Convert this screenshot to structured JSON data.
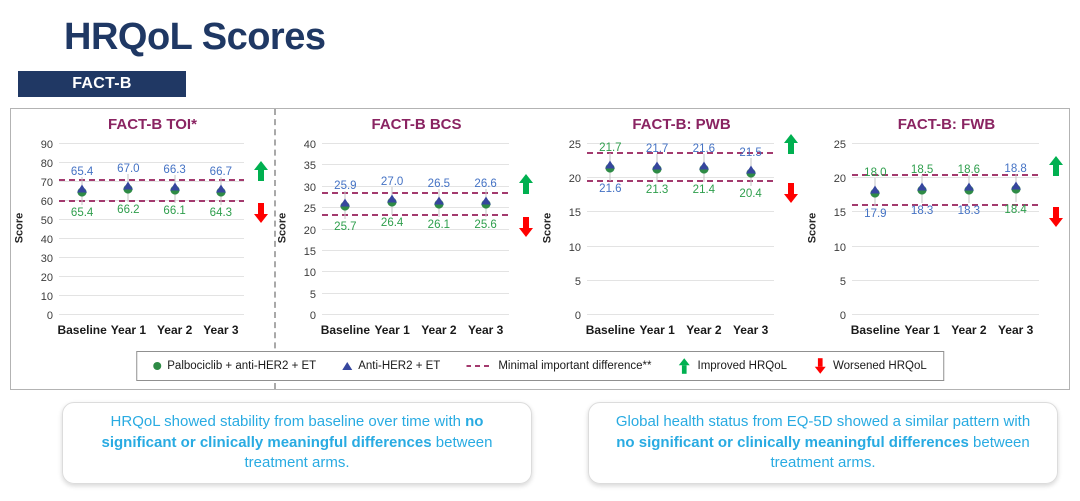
{
  "page": {
    "title": "HRQoL Scores",
    "badge": "FACT-B"
  },
  "colors": {
    "navy": "#1F3864",
    "chart_title_magenta": "#8A2462",
    "palbociclib_green": "#2E8B45",
    "palbociclib_label_green": "#2E9E4C",
    "anti_her2_blue": "#36469E",
    "anti_her2_label_blue": "#4472C4",
    "mid_dashed_line": "#A33A6E",
    "improved_arrow_green": "#00B050",
    "worsened_arrow_red": "#FF0000",
    "callout_blue": "#29ABE2"
  },
  "legend": {
    "items": [
      {
        "icon": "green-circle-icon",
        "label": "Palbociclib + anti-HER2 + ET"
      },
      {
        "icon": "blue-triangle-icon",
        "label": "Anti-HER2 + ET"
      },
      {
        "icon": "dashed-line-icon",
        "label": "Minimal important difference**"
      },
      {
        "icon": "up-arrow-icon",
        "label": "Improved HRQoL"
      },
      {
        "icon": "down-arrow-icon",
        "label": "Worsened HRQoL"
      }
    ]
  },
  "chart_data": [
    {
      "type": "scatter",
      "title": "FACT-B TOI*",
      "ylabel": "Score",
      "categories": [
        "Baseline",
        "Year 1",
        "Year 2",
        "Year 3"
      ],
      "ylim": [
        0,
        90
      ],
      "ytick_step": 10,
      "grid": true,
      "mid_upper": 70.5,
      "mid_lower": 59.5,
      "series": [
        {
          "name": "Palbociclib + anti-HER2 + ET",
          "key": "palbo",
          "values": [
            65.4,
            66.2,
            66.1,
            64.3
          ]
        },
        {
          "name": "Anti-HER2 + ET",
          "key": "anti",
          "values": [
            65.4,
            67.0,
            66.3,
            66.7
          ]
        }
      ],
      "label_above_series": [
        "anti",
        "anti",
        "anti",
        "anti"
      ]
    },
    {
      "type": "scatter",
      "title": "FACT-B BCS",
      "ylabel": "Score",
      "categories": [
        "Baseline",
        "Year 1",
        "Year 2",
        "Year 3"
      ],
      "ylim": [
        0,
        40
      ],
      "ytick_step": 5,
      "grid": true,
      "mid_upper": 28.2,
      "mid_lower": 23.2,
      "series": [
        {
          "name": "Palbociclib + anti-HER2 + ET",
          "key": "palbo",
          "values": [
            25.7,
            26.4,
            26.1,
            25.6
          ]
        },
        {
          "name": "Anti-HER2 + ET",
          "key": "anti",
          "values": [
            25.9,
            27.0,
            26.5,
            26.6
          ]
        }
      ],
      "label_above_series": [
        "anti",
        "anti",
        "anti",
        "anti"
      ]
    },
    {
      "type": "scatter",
      "title": "FACT-B: PWB",
      "ylabel": "Score",
      "categories": [
        "Baseline",
        "Year 1",
        "Year 2",
        "Year 3"
      ],
      "ylim": [
        0,
        25
      ],
      "ytick_step": 5,
      "grid": true,
      "mid_upper": 23.5,
      "mid_lower": 19.5,
      "series": [
        {
          "name": "Palbociclib + anti-HER2 + ET",
          "key": "palbo",
          "values": [
            21.7,
            21.3,
            21.4,
            20.4
          ]
        },
        {
          "name": "Anti-HER2 + ET",
          "key": "anti",
          "values": [
            21.6,
            21.7,
            21.6,
            21.5
          ]
        }
      ],
      "label_above_series": [
        "palbo",
        "anti",
        "anti",
        "anti"
      ]
    },
    {
      "type": "scatter",
      "title": "FACT-B: FWB",
      "ylabel": "Score",
      "categories": [
        "Baseline",
        "Year 1",
        "Year 2",
        "Year 3"
      ],
      "ylim": [
        0,
        25
      ],
      "ytick_step": 5,
      "grid": true,
      "mid_upper": 20.3,
      "mid_lower": 15.9,
      "series": [
        {
          "name": "Palbociclib + anti-HER2 + ET",
          "key": "palbo",
          "values": [
            18.0,
            18.5,
            18.6,
            18.4
          ]
        },
        {
          "name": "Anti-HER2 + ET",
          "key": "anti",
          "values": [
            17.9,
            18.3,
            18.3,
            18.8
          ]
        }
      ],
      "label_above_series": [
        "palbo",
        "palbo",
        "palbo",
        "anti"
      ]
    }
  ],
  "callouts": [
    {
      "segments": [
        {
          "text": "HRQoL showed stability from baseline over time with ",
          "bold": false
        },
        {
          "text": "no significant or clinically meaningful differences",
          "bold": true
        },
        {
          "text": " between treatment arms.",
          "bold": false
        }
      ]
    },
    {
      "segments": [
        {
          "text": "Global health status from EQ-5D showed a similar pattern with ",
          "bold": false
        },
        {
          "text": "no significant or clinically meaningful differences",
          "bold": true
        },
        {
          "text": " between treatment arms.",
          "bold": false
        }
      ]
    }
  ]
}
